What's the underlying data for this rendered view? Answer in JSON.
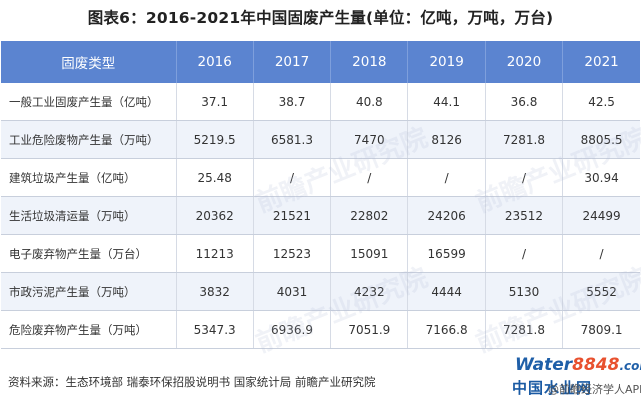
{
  "title": "图表6：2016-2021年中国固废产生量(单位：亿吨，万吨，万台)",
  "table": {
    "headers": [
      "固废类型",
      "2016",
      "2017",
      "2018",
      "2019",
      "2020",
      "2021"
    ],
    "rows": [
      [
        "一般工业固废产生量（亿吨）",
        "37.1",
        "38.7",
        "40.8",
        "44.1",
        "36.8",
        "42.5"
      ],
      [
        "工业危险废物产生量（万吨）",
        "5219.5",
        "6581.3",
        "7470",
        "8126",
        "7281.8",
        "8805.5"
      ],
      [
        "建筑垃圾产生量（亿吨）",
        "25.48",
        "/",
        "/",
        "/",
        "/",
        "30.94"
      ],
      [
        "生活垃圾清运量（万吨）",
        "20362",
        "21521",
        "22802",
        "24206",
        "23512",
        "24499"
      ],
      [
        "电子废弃物产生量（万台）",
        "11213",
        "12523",
        "15091",
        "16599",
        "/",
        "/"
      ],
      [
        "市政污泥产生量（万吨）",
        "3832",
        "4031",
        "4232",
        "4444",
        "5130",
        "5552"
      ],
      [
        "危险废弃物产生量（万吨）",
        "5347.3",
        "6936.9",
        "7051.9",
        "7166.8",
        "7281.8",
        "7809.1"
      ]
    ]
  },
  "source": "资料来源：生态环境部 瑞泰环保招股说明书 国家统计局 前瞻产业研究院",
  "watermark": "前瞻产业研究院",
  "logo": {
    "word": "Water",
    "number": "8848",
    "suffix": ".com",
    "subtitle": "中国水业网",
    "side_text": "@前瞻经济学人APP"
  },
  "colors": {
    "header_bg": "#5b84d0",
    "row_alt_bg": "#eff3fa"
  }
}
